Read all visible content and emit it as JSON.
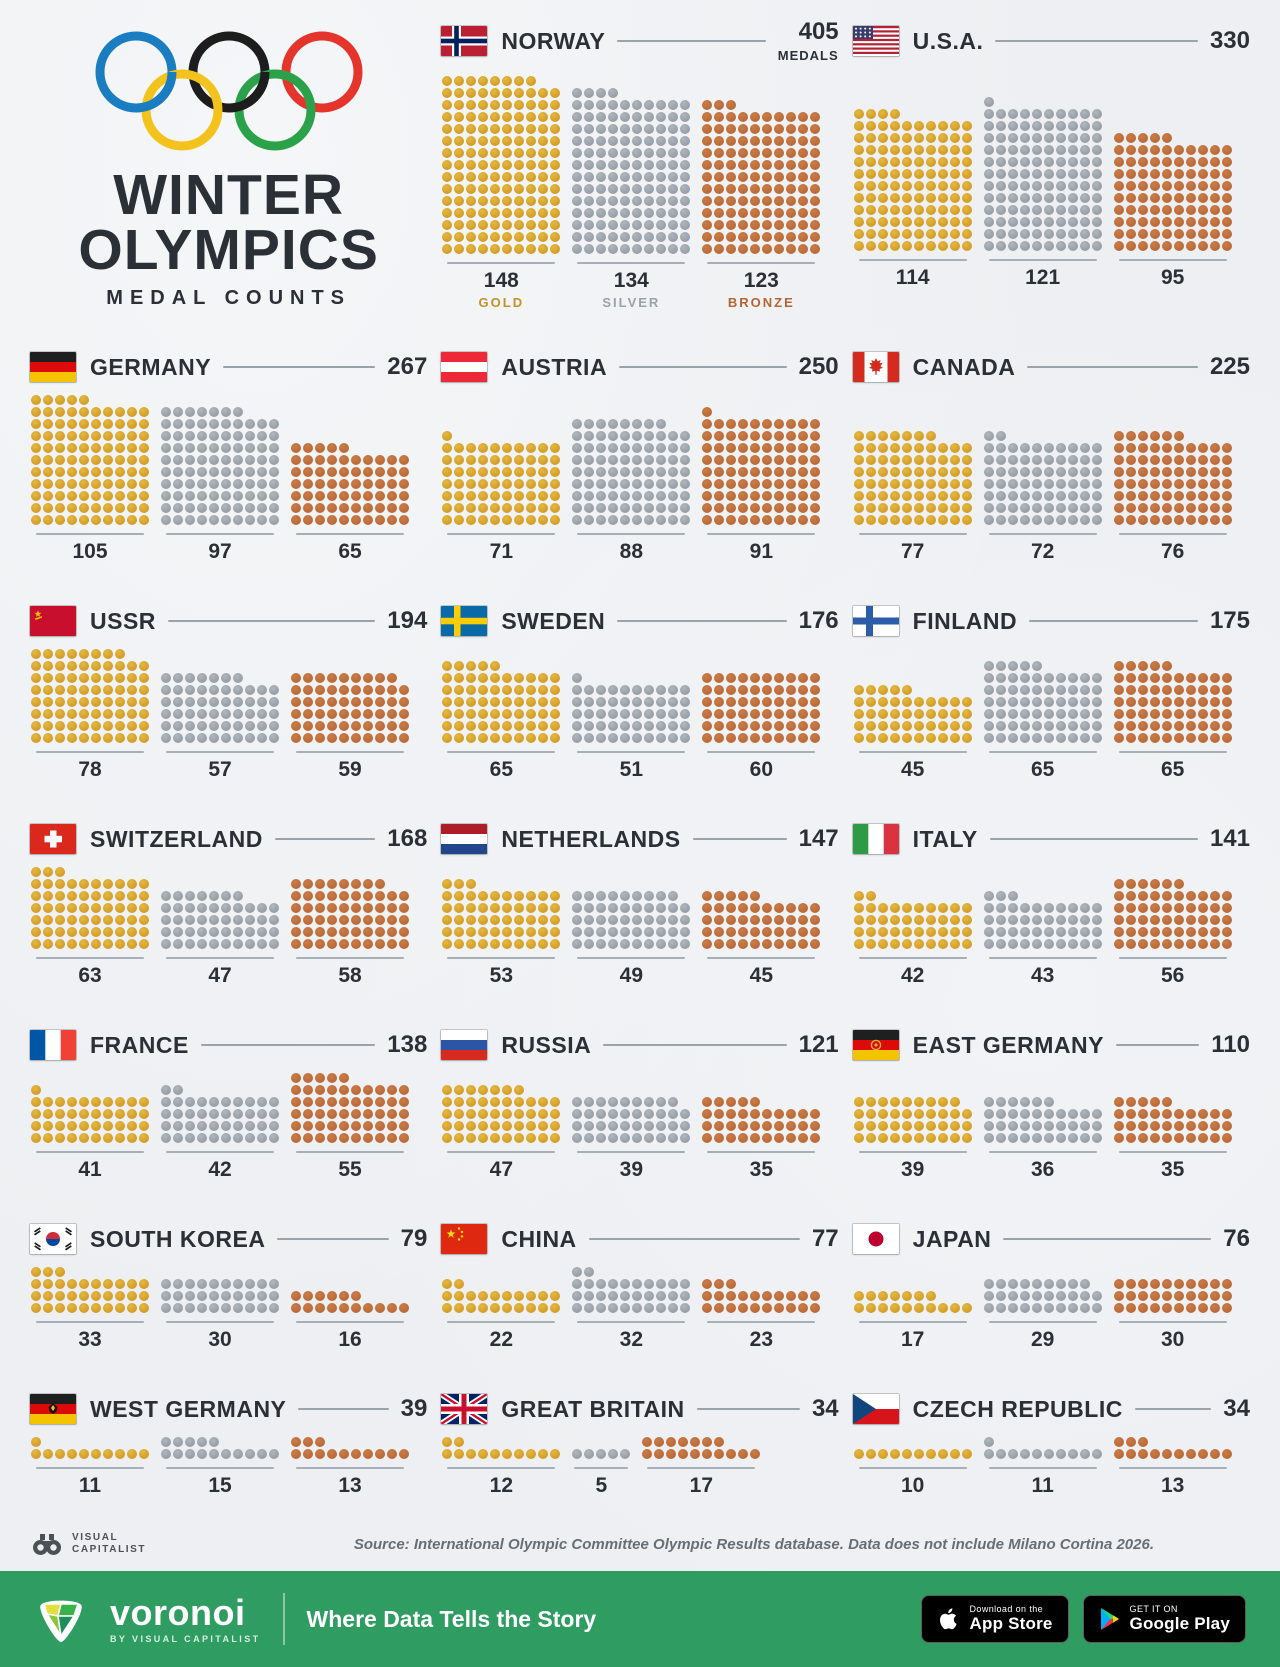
{
  "title": {
    "line1": "WINTER",
    "line2": "OLYMPICS",
    "subtitle": "MEDAL COUNTS"
  },
  "legend": {
    "gold": "GOLD",
    "silver": "SILVER",
    "bronze": "BRONZE",
    "medals_label": "MEDALS"
  },
  "colors": {
    "gold": "#d5a02b",
    "silver": "#9aa1a8",
    "bronze": "#bc6c3a",
    "background": "#edeff2",
    "text": "#2b3037",
    "footer_green": "#2f9c62",
    "ring_blue": "#1a7dc2",
    "ring_black": "#1d1d1d",
    "ring_red": "#e5342c",
    "ring_yellow": "#f4c21c",
    "ring_green": "#2ba24a"
  },
  "chart_data": {
    "type": "waffle",
    "unit": "medals",
    "columns_per_block": 10,
    "series_keys": [
      "gold",
      "silver",
      "bronze"
    ],
    "countries": [
      {
        "name": "NORWAY",
        "code": "norway",
        "total": 405,
        "gold": 148,
        "silver": 134,
        "bronze": 123
      },
      {
        "name": "U.S.A.",
        "code": "usa",
        "total": 330,
        "gold": 114,
        "silver": 121,
        "bronze": 95
      },
      {
        "name": "GERMANY",
        "code": "germany",
        "total": 267,
        "gold": 105,
        "silver": 97,
        "bronze": 65
      },
      {
        "name": "AUSTRIA",
        "code": "austria",
        "total": 250,
        "gold": 71,
        "silver": 88,
        "bronze": 91
      },
      {
        "name": "CANADA",
        "code": "canada",
        "total": 225,
        "gold": 77,
        "silver": 72,
        "bronze": 76
      },
      {
        "name": "USSR",
        "code": "ussr",
        "total": 194,
        "gold": 78,
        "silver": 57,
        "bronze": 59
      },
      {
        "name": "SWEDEN",
        "code": "sweden",
        "total": 176,
        "gold": 65,
        "silver": 51,
        "bronze": 60
      },
      {
        "name": "FINLAND",
        "code": "finland",
        "total": 175,
        "gold": 45,
        "silver": 65,
        "bronze": 65
      },
      {
        "name": "SWITZERLAND",
        "code": "switzerland",
        "total": 168,
        "gold": 63,
        "silver": 47,
        "bronze": 58
      },
      {
        "name": "NETHERLANDS",
        "code": "netherlands",
        "total": 147,
        "gold": 53,
        "silver": 49,
        "bronze": 45
      },
      {
        "name": "ITALY",
        "code": "italy",
        "total": 141,
        "gold": 42,
        "silver": 43,
        "bronze": 56
      },
      {
        "name": "FRANCE",
        "code": "france",
        "total": 138,
        "gold": 41,
        "silver": 42,
        "bronze": 55
      },
      {
        "name": "RUSSIA",
        "code": "russia",
        "total": 121,
        "gold": 47,
        "silver": 39,
        "bronze": 35
      },
      {
        "name": "EAST GERMANY",
        "code": "east-germany",
        "total": 110,
        "gold": 39,
        "silver": 36,
        "bronze": 35
      },
      {
        "name": "SOUTH KOREA",
        "code": "south-korea",
        "total": 79,
        "gold": 33,
        "silver": 30,
        "bronze": 16
      },
      {
        "name": "CHINA",
        "code": "china",
        "total": 77,
        "gold": 22,
        "silver": 32,
        "bronze": 23
      },
      {
        "name": "JAPAN",
        "code": "japan",
        "total": 76,
        "gold": 17,
        "silver": 29,
        "bronze": 30
      },
      {
        "name": "WEST GERMANY",
        "code": "west-germany",
        "total": 39,
        "gold": 11,
        "silver": 15,
        "bronze": 13
      },
      {
        "name": "GREAT BRITAIN",
        "code": "great-britain",
        "total": 34,
        "gold": 12,
        "silver": 5,
        "bronze": 17
      },
      {
        "name": "CZECH REPUBLIC",
        "code": "czech-republic",
        "total": 34,
        "gold": 10,
        "silver": 11,
        "bronze": 13
      }
    ]
  },
  "footer": {
    "source": "Source: International Olympic Committee Olympic Results database. Data does not include Milano Cortina 2026.",
    "vc_logo_line1": "VISUAL",
    "vc_logo_line2": "CAPITALIST",
    "brand": "voronoi",
    "brand_sub": "BY VISUAL CAPITALIST",
    "tagline": "Where Data Tells the Story",
    "appstore_line1": "Download on the",
    "appstore_line2": "App Store",
    "googleplay_line1": "GET IT ON",
    "googleplay_line2": "Google Play"
  }
}
